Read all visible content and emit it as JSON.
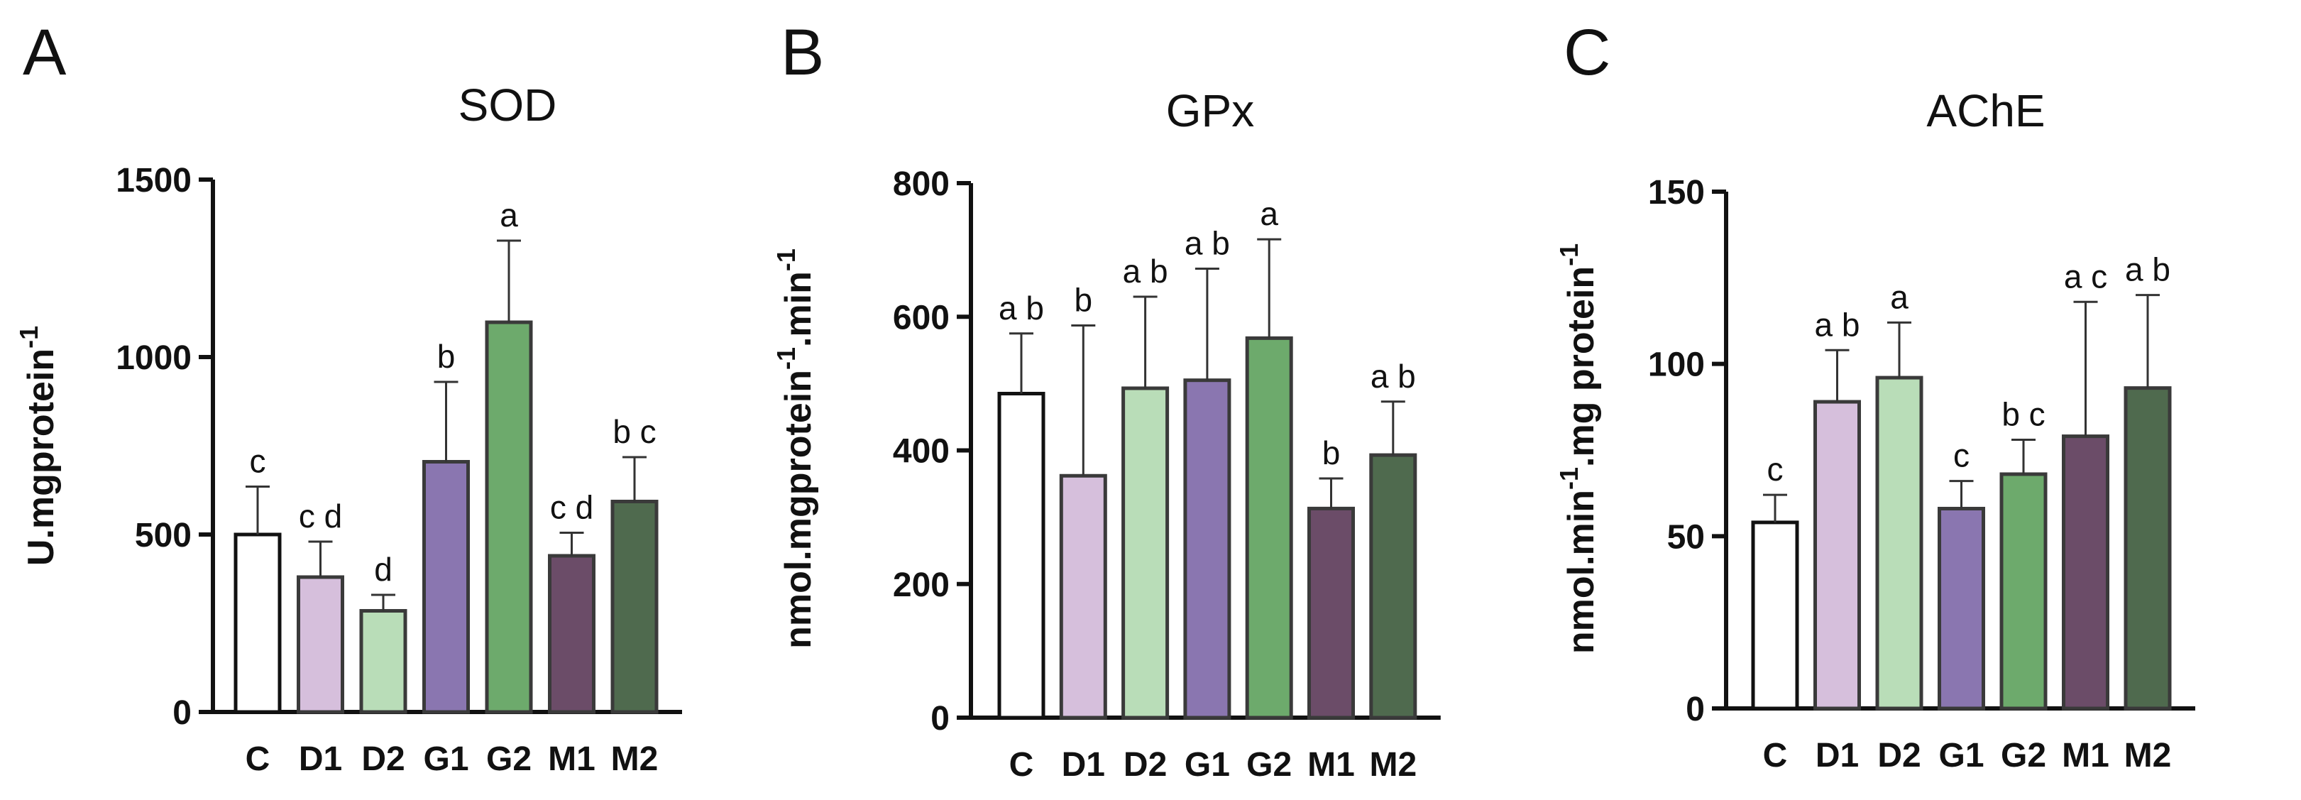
{
  "figure": {
    "palette": {
      "C": "#ffffff",
      "D1": "#d6bfdc",
      "D2": "#b9ddb8",
      "G1": "#8a76b0",
      "G2": "#6daa6c",
      "M1": "#6b4c68",
      "M2": "#4f6a4e",
      "outline": "#3a3a3a",
      "C_outline": "#111111"
    }
  },
  "chart_data": [
    {
      "panel": "A",
      "type": "bar",
      "title": "SOD",
      "ylabel": "U.mgprotein",
      "ylabel_sup": "-1",
      "categories": [
        "C",
        "D1",
        "D2",
        "G1",
        "G2",
        "M1",
        "M2"
      ],
      "values": [
        500,
        380,
        285,
        705,
        1098,
        440,
        593
      ],
      "errors": [
        135,
        100,
        45,
        225,
        230,
        65,
        125
      ],
      "letters": [
        "c",
        "c d",
        "d",
        "b",
        "a",
        "c d",
        "b c"
      ],
      "ylim": [
        0,
        1500
      ],
      "yticks": [
        0,
        500,
        1000,
        1500
      ]
    },
    {
      "panel": "B",
      "type": "bar",
      "title": "GPx",
      "ylabel": "nmol.mgprotein",
      "ylabel_sup": "-1",
      "ylabel_mid": ".min",
      "ylabel_sup2": "-1",
      "categories": [
        "C",
        "D1",
        "D2",
        "G1",
        "G2",
        "M1",
        "M2"
      ],
      "values": [
        485,
        362,
        493,
        505,
        568,
        313,
        393
      ],
      "errors": [
        90,
        225,
        137,
        167,
        148,
        45,
        80
      ],
      "letters": [
        "a b",
        "b",
        "a b",
        "a b",
        "a",
        "b",
        "a b"
      ],
      "ylim": [
        0,
        800
      ],
      "yticks": [
        0,
        200,
        400,
        600,
        800
      ]
    },
    {
      "panel": "C",
      "type": "bar",
      "title": "AChE",
      "ylabel": "nmol.min",
      "ylabel_sup": "-1",
      "ylabel_mid": ".mg protein",
      "ylabel_sup2": "-1",
      "categories": [
        "C",
        "D1",
        "D2",
        "G1",
        "G2",
        "M1",
        "M2"
      ],
      "values": [
        54,
        89,
        96,
        58,
        68,
        79,
        93
      ],
      "errors": [
        8,
        15,
        16,
        8,
        10,
        39,
        27
      ],
      "letters": [
        "c",
        "a b",
        "a",
        "c",
        "b c",
        "a c",
        "a b"
      ],
      "ylim": [
        0,
        150
      ],
      "yticks": [
        0,
        50,
        100,
        150
      ]
    }
  ]
}
